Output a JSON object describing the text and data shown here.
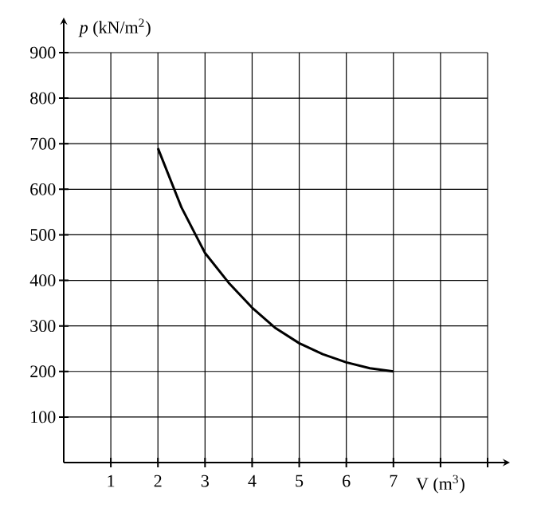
{
  "chart_data": {
    "type": "line",
    "xlabel": "V (m$^{3}$)",
    "ylabel": "*p* (kN/m$^{2}$)",
    "x": [
      2,
      2.5,
      3,
      3.5,
      4,
      4.5,
      5,
      5.5,
      6,
      6.5,
      7
    ],
    "series": [
      {
        "color": "#000000",
        "values": [
          690,
          560,
          460,
          395,
          340,
          295,
          262,
          238,
          220,
          207,
          200
        ]
      }
    ],
    "xlim": [
      0,
      9
    ],
    "ylim": [
      0,
      900
    ],
    "xticks": [
      1,
      2,
      3,
      4,
      5,
      6,
      7,
      {
        "value": 8,
        "label": null
      },
      {
        "value": 9,
        "label": null
      }
    ],
    "yticks": [
      100,
      200,
      300,
      400,
      500,
      600,
      700,
      800,
      900
    ],
    "grid": true,
    "line_style": "solid",
    "marker": "none"
  }
}
